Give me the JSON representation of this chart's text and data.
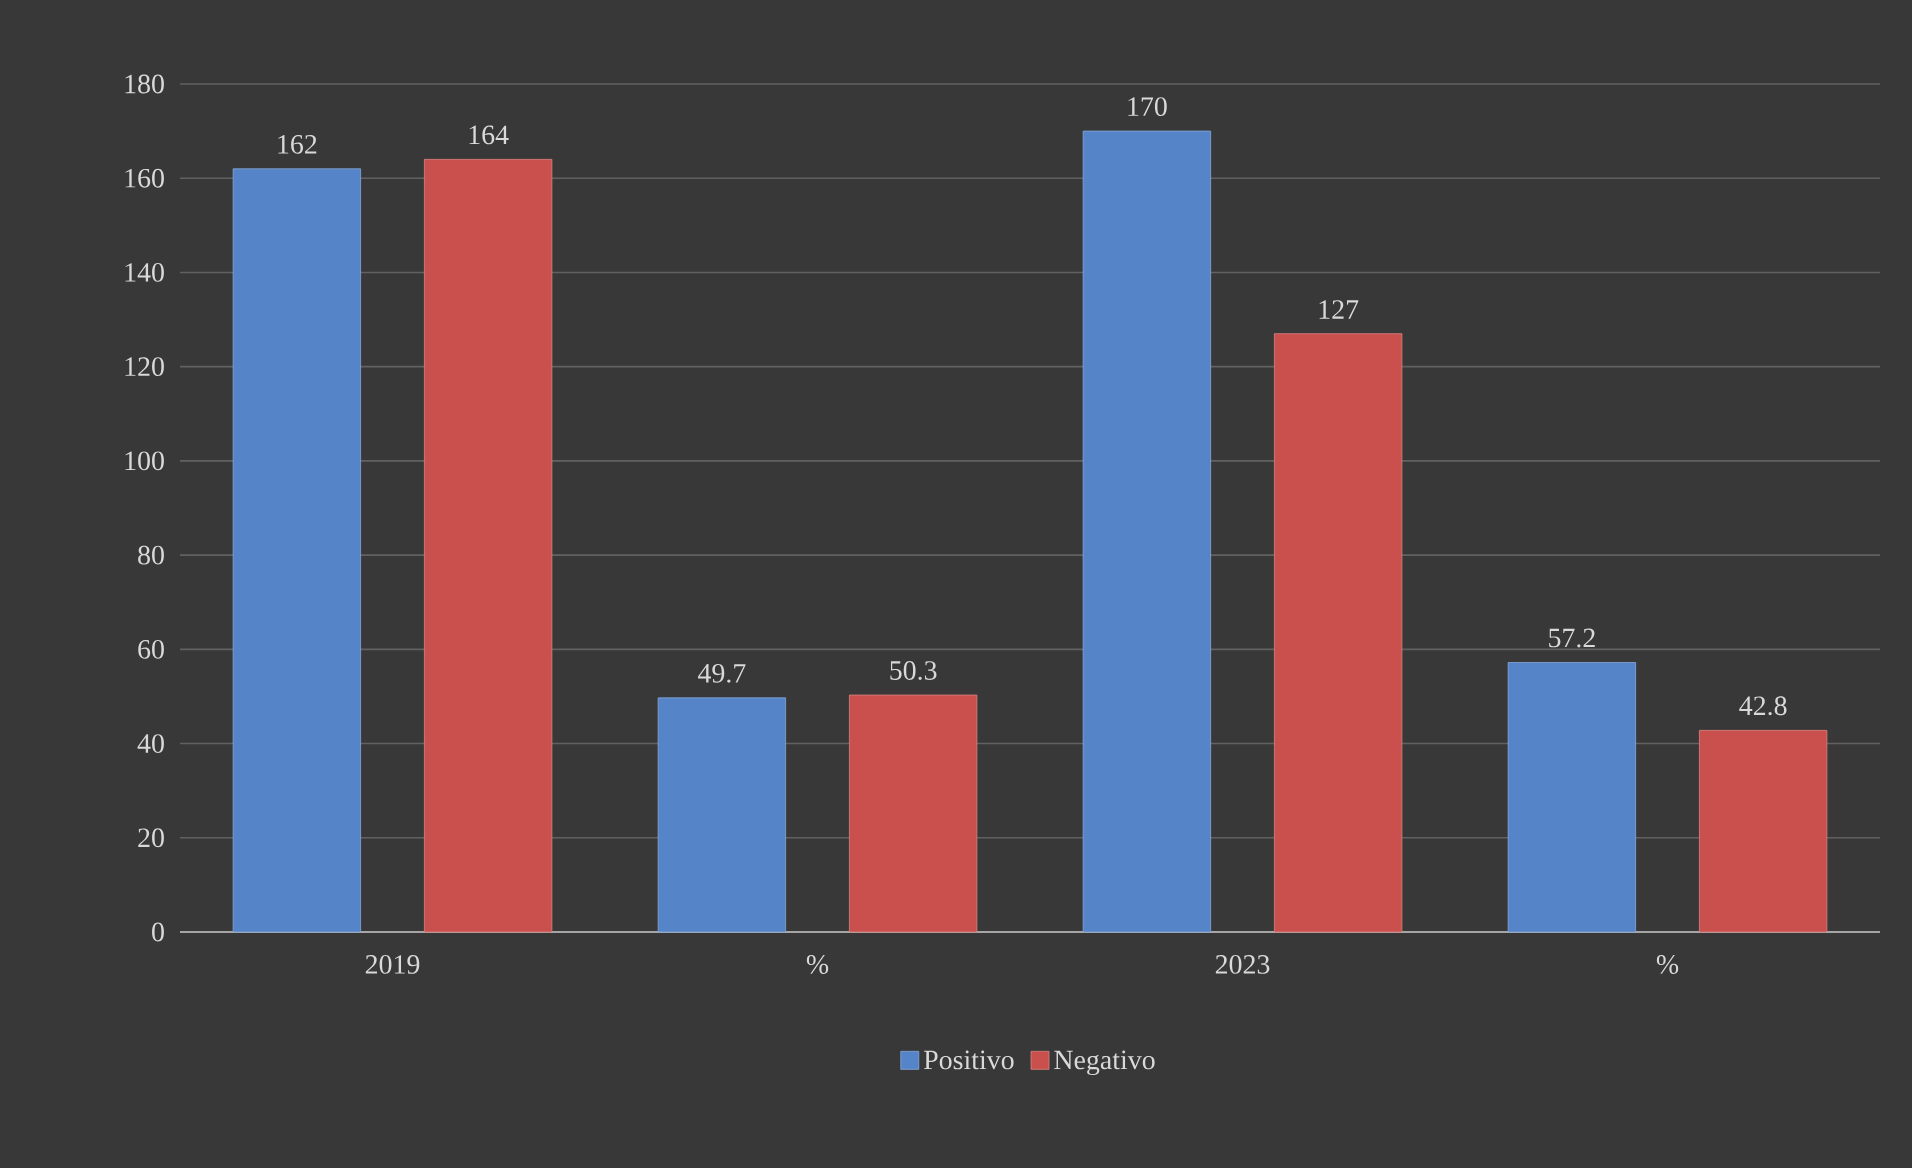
{
  "chart_data": {
    "type": "bar",
    "categories": [
      "2019",
      "%",
      "2023",
      "%"
    ],
    "series": [
      {
        "name": "Positivo",
        "color": "#5584c8",
        "values": [
          162,
          49.7,
          170,
          57.2
        ]
      },
      {
        "name": "Negativo",
        "color": "#c9504c",
        "values": [
          164,
          50.3,
          127,
          42.8
        ]
      }
    ],
    "ylim": [
      0,
      180
    ],
    "yticks": [
      0,
      20,
      40,
      60,
      80,
      100,
      120,
      140,
      160,
      180
    ],
    "grid": "y",
    "legend": "bottom",
    "data_labels": true
  }
}
